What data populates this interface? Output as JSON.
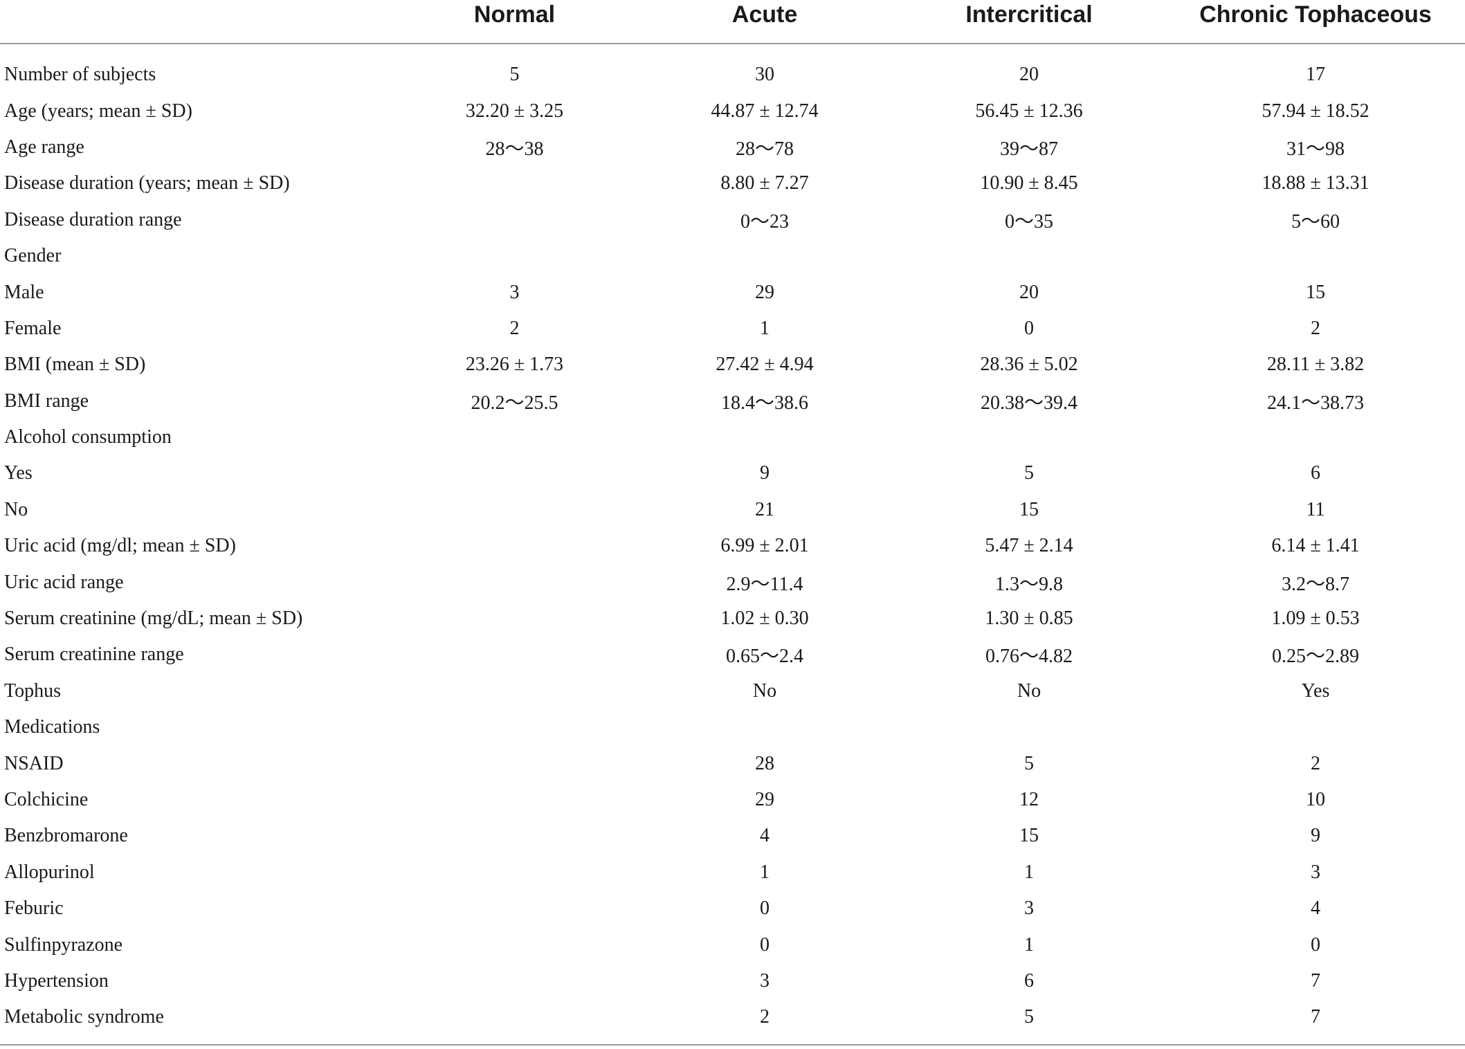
{
  "headers": [
    "",
    "Normal",
    "Acute",
    "Intercritical",
    "Chronic Tophaceous"
  ],
  "rows": [
    [
      "Number of subjects",
      "5",
      "30",
      "20",
      "17"
    ],
    [
      "Age (years; mean ± SD)",
      "32.20 ± 3.25",
      "44.87 ± 12.74",
      "56.45 ± 12.36",
      "57.94 ± 18.52"
    ],
    [
      "Age range",
      "28～38",
      "28～78",
      "39～87",
      "31～98"
    ],
    [
      "Disease duration (years; mean ± SD)",
      "",
      "8.80 ± 7.27",
      "10.90 ± 8.45",
      "18.88 ± 13.31"
    ],
    [
      "Disease duration range",
      "",
      "0～23",
      "0～35",
      "5～60"
    ],
    [
      "Gender",
      "",
      "",
      "",
      ""
    ],
    [
      "Male",
      "3",
      "29",
      "20",
      "15"
    ],
    [
      "Female",
      "2",
      "1",
      "0",
      "2"
    ],
    [
      "BMI (mean ± SD)",
      "23.26 ± 1.73",
      "27.42 ± 4.94",
      "28.36 ± 5.02",
      "28.11 ± 3.82"
    ],
    [
      "BMI range",
      "20.2～25.5",
      "18.4～38.6",
      "20.38～39.4",
      "24.1～38.73"
    ],
    [
      "Alcohol consumption",
      "",
      "",
      "",
      ""
    ],
    [
      "Yes",
      "",
      "9",
      "5",
      "6"
    ],
    [
      "No",
      "",
      "21",
      "15",
      "11"
    ],
    [
      "Uric acid (mg/dl; mean ± SD)",
      "",
      "6.99 ± 2.01",
      "5.47 ± 2.14",
      "6.14 ± 1.41"
    ],
    [
      "Uric acid range",
      "",
      "2.9～11.4",
      "1.3～9.8",
      "3.2～8.7"
    ],
    [
      "Serum creatinine (mg/dL; mean ± SD)",
      "",
      "1.02 ± 0.30",
      "1.30 ± 0.85",
      "1.09 ± 0.53"
    ],
    [
      "Serum creatinine range",
      "",
      "0.65～2.4",
      "0.76～4.82",
      "0.25～2.89"
    ],
    [
      "Tophus",
      "",
      "No",
      "No",
      "Yes"
    ],
    [
      "Medications",
      "",
      "",
      "",
      ""
    ],
    [
      "NSAID",
      "",
      "28",
      "5",
      "2"
    ],
    [
      "Colchicine",
      "",
      "29",
      "12",
      "10"
    ],
    [
      "Benzbromarone",
      "",
      "4",
      "15",
      "9"
    ],
    [
      "Allopurinol",
      "",
      "1",
      "1",
      "3"
    ],
    [
      "Feburic",
      "",
      "0",
      "3",
      "4"
    ],
    [
      "Sulfinpyrazone",
      "",
      "0",
      "1",
      "0"
    ],
    [
      "Hypertension",
      "",
      "3",
      "6",
      "7"
    ],
    [
      "Metabolic syndrome",
      "",
      "2",
      "5",
      "7"
    ]
  ]
}
